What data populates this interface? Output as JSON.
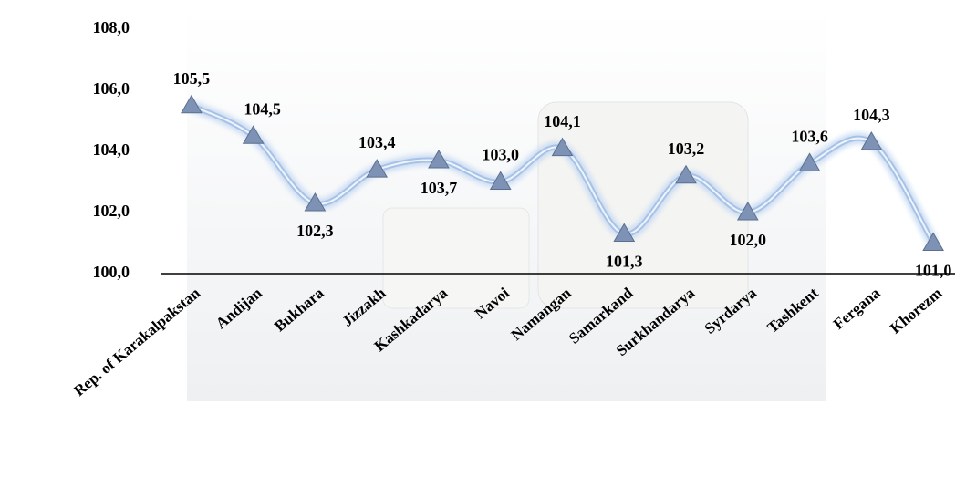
{
  "chart_data": {
    "type": "line",
    "categories": [
      "Rep. of Karakalpakstan",
      "Andijan",
      "Bukhara",
      "Jizzakh",
      "Kashkadarya",
      "Navoi",
      "Namangan",
      "Samarkand",
      "Surkhandarya",
      "Syrdarya",
      "Tashkent",
      "Fergana",
      "Khorezm"
    ],
    "values": [
      105.5,
      104.5,
      102.3,
      103.4,
      103.7,
      103.0,
      104.1,
      101.3,
      103.2,
      102.0,
      103.6,
      104.3,
      101.0
    ],
    "value_labels": [
      "105,5",
      "104,5",
      "102,3",
      "103,4",
      "103,7",
      "103,0",
      "104,1",
      "101,3",
      "103,2",
      "102,0",
      "103,6",
      "104,3",
      "101,0"
    ],
    "color": "#a7c2e6",
    "marker_color": "#7d92b4",
    "ylim": [
      100,
      108
    ],
    "yticks": [
      {
        "value": 100,
        "label": "100,0"
      },
      {
        "value": 102,
        "label": "102,0"
      },
      {
        "value": 104,
        "label": "104,0"
      },
      {
        "value": 106,
        "label": "106,0"
      },
      {
        "value": 108,
        "label": "108,0"
      }
    ],
    "grid": false
  }
}
